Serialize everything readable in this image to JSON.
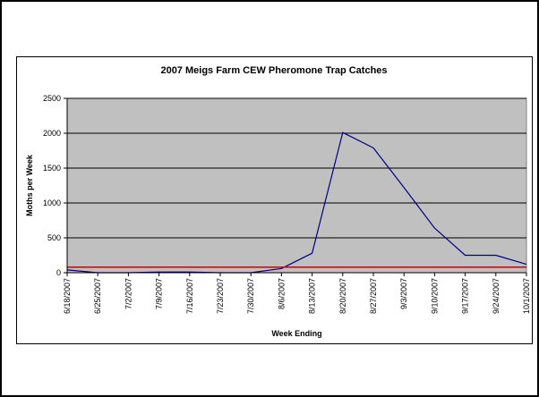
{
  "chart_data": {
    "type": "line",
    "title": "2007 Meigs Farm CEW Pheromone Trap Catches",
    "xlabel": "Week Ending",
    "ylabel": "Moths per Week",
    "ylim": [
      0,
      2500
    ],
    "yticks": [
      "0",
      "500",
      "1000",
      "1500",
      "2000",
      "2500"
    ],
    "grid": true,
    "legend": "none",
    "categories": [
      "6/18/2007",
      "6/25/2007",
      "7/2/2007",
      "7/9/2007",
      "7/16/2007",
      "7/23/2007",
      "7/30/2007",
      "8/6/2007",
      "8/13/2007",
      "8/20/2007",
      "8/27/2007",
      "9/3/2007",
      "9/10/2007",
      "9/17/2007",
      "9/24/2007",
      "10/1/2007"
    ],
    "series": [
      {
        "values": [
          40,
          0,
          0,
          10,
          10,
          0,
          0,
          60,
          280,
          2010,
          1790,
          1220,
          640,
          250,
          250,
          120
        ],
        "color": "#000080"
      },
      {
        "values": [
          80,
          80,
          80,
          80,
          80,
          80,
          80,
          80,
          80,
          80,
          80,
          80,
          80,
          80,
          80,
          80
        ],
        "color": "#cc0000"
      }
    ],
    "plot_background": "#c0c0c0"
  }
}
